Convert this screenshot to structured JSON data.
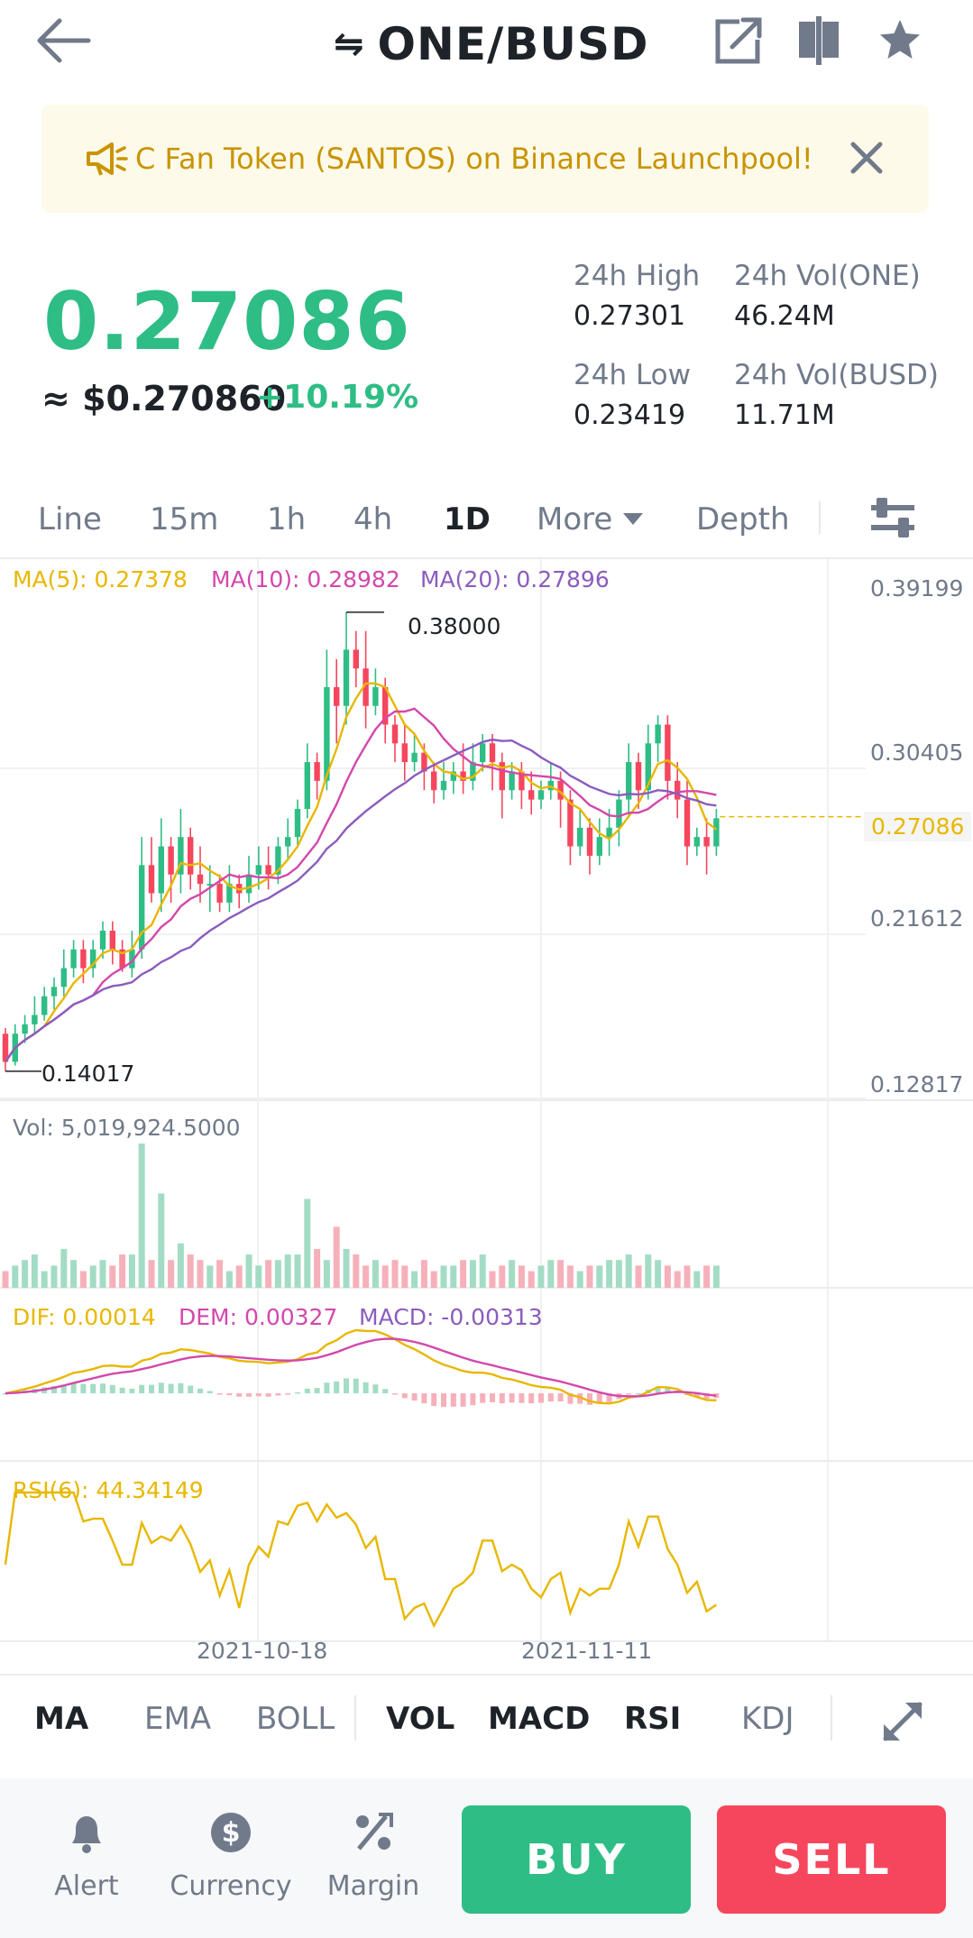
{
  "header": {
    "title": "ONE/BUSD",
    "swap_glyph": "⇋",
    "icons": [
      "back-arrow-icon",
      "share-icon",
      "split-view-icon",
      "star-icon"
    ]
  },
  "banner": {
    "text": "C Fan Token (SANTOS) on Binance Launchpool!",
    "icons": [
      "megaphone-icon",
      "close-icon"
    ]
  },
  "ticker": {
    "last_price": "0.27086",
    "fiat_price": "≈ $0.270860",
    "change_pct": "+10.19%",
    "high_label": "24h High",
    "high_value": "0.27301",
    "low_label": "24h Low",
    "low_value": "0.23419",
    "vol_base_label": "24h Vol(ONE)",
    "vol_base_value": "46.24M",
    "vol_quote_label": "24h Vol(BUSD)",
    "vol_quote_value": "11.71M"
  },
  "intervals": {
    "items": [
      "Line",
      "15m",
      "1h",
      "4h",
      "1D",
      "More",
      "Depth"
    ],
    "active": "1D"
  },
  "chart_data": [
    {
      "type": "candlestick",
      "ma_labels": {
        "ma5": "MA(5): 0.27378",
        "ma10": "MA(10): 0.28982",
        "ma20": "MA(20): 0.27896"
      },
      "y_ticks": [
        "0.39199",
        "0.30405",
        "0.27086",
        "0.21612",
        "0.12817"
      ],
      "ylim": [
        0.12817,
        0.39199
      ],
      "max_label": "0.38000",
      "min_label": "0.14017",
      "last_price_tag": "0.27086",
      "x_ticks": [
        "2021-10-18",
        "2021-11-11"
      ],
      "candles": [
        [
          0.155,
          0.14,
          0.135,
          0.158
        ],
        [
          0.14,
          0.155,
          0.138,
          0.16
        ],
        [
          0.155,
          0.16,
          0.15,
          0.165
        ],
        [
          0.16,
          0.165,
          0.155,
          0.175
        ],
        [
          0.165,
          0.175,
          0.162,
          0.18
        ],
        [
          0.175,
          0.18,
          0.168,
          0.185
        ],
        [
          0.18,
          0.19,
          0.175,
          0.2
        ],
        [
          0.19,
          0.2,
          0.185,
          0.205
        ],
        [
          0.2,
          0.19,
          0.182,
          0.205
        ],
        [
          0.19,
          0.2,
          0.185,
          0.205
        ],
        [
          0.2,
          0.21,
          0.195,
          0.215
        ],
        [
          0.21,
          0.2,
          0.192,
          0.215
        ],
        [
          0.2,
          0.19,
          0.188,
          0.205
        ],
        [
          0.19,
          0.2,
          0.185,
          0.21
        ],
        [
          0.2,
          0.245,
          0.195,
          0.26
        ],
        [
          0.245,
          0.23,
          0.225,
          0.26
        ],
        [
          0.23,
          0.255,
          0.22,
          0.27
        ],
        [
          0.255,
          0.24,
          0.225,
          0.26
        ],
        [
          0.24,
          0.26,
          0.23,
          0.275
        ],
        [
          0.26,
          0.24,
          0.232,
          0.265
        ],
        [
          0.24,
          0.235,
          0.225,
          0.255
        ],
        [
          0.235,
          0.235,
          0.22,
          0.245
        ],
        [
          0.235,
          0.225,
          0.22,
          0.24
        ],
        [
          0.225,
          0.235,
          0.22,
          0.245
        ],
        [
          0.235,
          0.23,
          0.222,
          0.24
        ],
        [
          0.23,
          0.24,
          0.225,
          0.25
        ],
        [
          0.24,
          0.245,
          0.232,
          0.255
        ],
        [
          0.245,
          0.24,
          0.232,
          0.255
        ],
        [
          0.24,
          0.255,
          0.235,
          0.26
        ],
        [
          0.255,
          0.26,
          0.248,
          0.27
        ],
        [
          0.26,
          0.275,
          0.255,
          0.28
        ],
        [
          0.275,
          0.3,
          0.27,
          0.31
        ],
        [
          0.3,
          0.29,
          0.28,
          0.305
        ],
        [
          0.29,
          0.34,
          0.285,
          0.36
        ],
        [
          0.34,
          0.33,
          0.31,
          0.355
        ],
        [
          0.33,
          0.36,
          0.32,
          0.38
        ],
        [
          0.36,
          0.35,
          0.34,
          0.37
        ],
        [
          0.35,
          0.33,
          0.318,
          0.37
        ],
        [
          0.33,
          0.34,
          0.325,
          0.35
        ],
        [
          0.34,
          0.32,
          0.31,
          0.345
        ],
        [
          0.32,
          0.31,
          0.3,
          0.325
        ],
        [
          0.31,
          0.3,
          0.29,
          0.32
        ],
        [
          0.3,
          0.305,
          0.295,
          0.315
        ],
        [
          0.305,
          0.295,
          0.285,
          0.31
        ],
        [
          0.295,
          0.285,
          0.278,
          0.3
        ],
        [
          0.285,
          0.29,
          0.28,
          0.3
        ],
        [
          0.29,
          0.295,
          0.283,
          0.3
        ],
        [
          0.295,
          0.29,
          0.283,
          0.31
        ],
        [
          0.29,
          0.3,
          0.285,
          0.31
        ],
        [
          0.3,
          0.31,
          0.295,
          0.315
        ],
        [
          0.31,
          0.3,
          0.285,
          0.315
        ],
        [
          0.3,
          0.285,
          0.27,
          0.305
        ],
        [
          0.285,
          0.295,
          0.28,
          0.3
        ],
        [
          0.295,
          0.285,
          0.275,
          0.3
        ],
        [
          0.285,
          0.28,
          0.272,
          0.295
        ],
        [
          0.28,
          0.285,
          0.275,
          0.29
        ],
        [
          0.285,
          0.29,
          0.28,
          0.3
        ],
        [
          0.29,
          0.28,
          0.265,
          0.295
        ],
        [
          0.28,
          0.255,
          0.245,
          0.285
        ],
        [
          0.255,
          0.265,
          0.25,
          0.275
        ],
        [
          0.265,
          0.25,
          0.24,
          0.27
        ],
        [
          0.25,
          0.26,
          0.245,
          0.27
        ],
        [
          0.26,
          0.265,
          0.25,
          0.275
        ],
        [
          0.265,
          0.28,
          0.255,
          0.285
        ],
        [
          0.28,
          0.3,
          0.27,
          0.31
        ],
        [
          0.3,
          0.285,
          0.275,
          0.305
        ],
        [
          0.285,
          0.31,
          0.28,
          0.32
        ],
        [
          0.31,
          0.32,
          0.3,
          0.325
        ],
        [
          0.32,
          0.29,
          0.28,
          0.325
        ],
        [
          0.29,
          0.28,
          0.27,
          0.3
        ],
        [
          0.28,
          0.255,
          0.245,
          0.29
        ],
        [
          0.255,
          0.26,
          0.25,
          0.265
        ],
        [
          0.26,
          0.255,
          0.24,
          0.27
        ],
        [
          0.255,
          0.27,
          0.25,
          0.275
        ]
      ]
    },
    {
      "type": "bar",
      "label": "Vol: 5,019,924.5000",
      "values": [
        3,
        4,
        5,
        6,
        3,
        4,
        7,
        5,
        3,
        4,
        5,
        4,
        6,
        6,
        26,
        5,
        17,
        5,
        8,
        6,
        5,
        4,
        5,
        3,
        4,
        6,
        4,
        5,
        5,
        6,
        6,
        16,
        7,
        5,
        11,
        7,
        6,
        4,
        5,
        4,
        5,
        4,
        3,
        5,
        3,
        4,
        4,
        5,
        5,
        6,
        3,
        4,
        5,
        4,
        3,
        4,
        5,
        5,
        4,
        3,
        4,
        4,
        5,
        5,
        6,
        4,
        6,
        5,
        4,
        3,
        4,
        3,
        4,
        4
      ]
    },
    {
      "type": "line",
      "dif_label": "DIF: 0.00014",
      "dem_label": "DEM: 0.00327",
      "macd_label": "MACD: -0.00313"
    },
    {
      "type": "line",
      "rsi_label": "RSI(6): 44.34149"
    }
  ],
  "indicators": {
    "main": [
      "MA",
      "EMA",
      "BOLL"
    ],
    "sub": [
      "VOL",
      "MACD",
      "RSI",
      "KDJ"
    ],
    "active": [
      "MA",
      "VOL",
      "MACD",
      "RSI"
    ]
  },
  "nav": {
    "alert": "Alert",
    "currency": "Currency",
    "margin": "Margin",
    "buy": "BUY",
    "sell": "SELL"
  },
  "colors": {
    "up": "#2ebd85",
    "down": "#f6465d",
    "ma5": "#e8b700",
    "ma10": "#d348ab",
    "ma20": "#8b5cbd",
    "banner_text": "#c99400"
  }
}
